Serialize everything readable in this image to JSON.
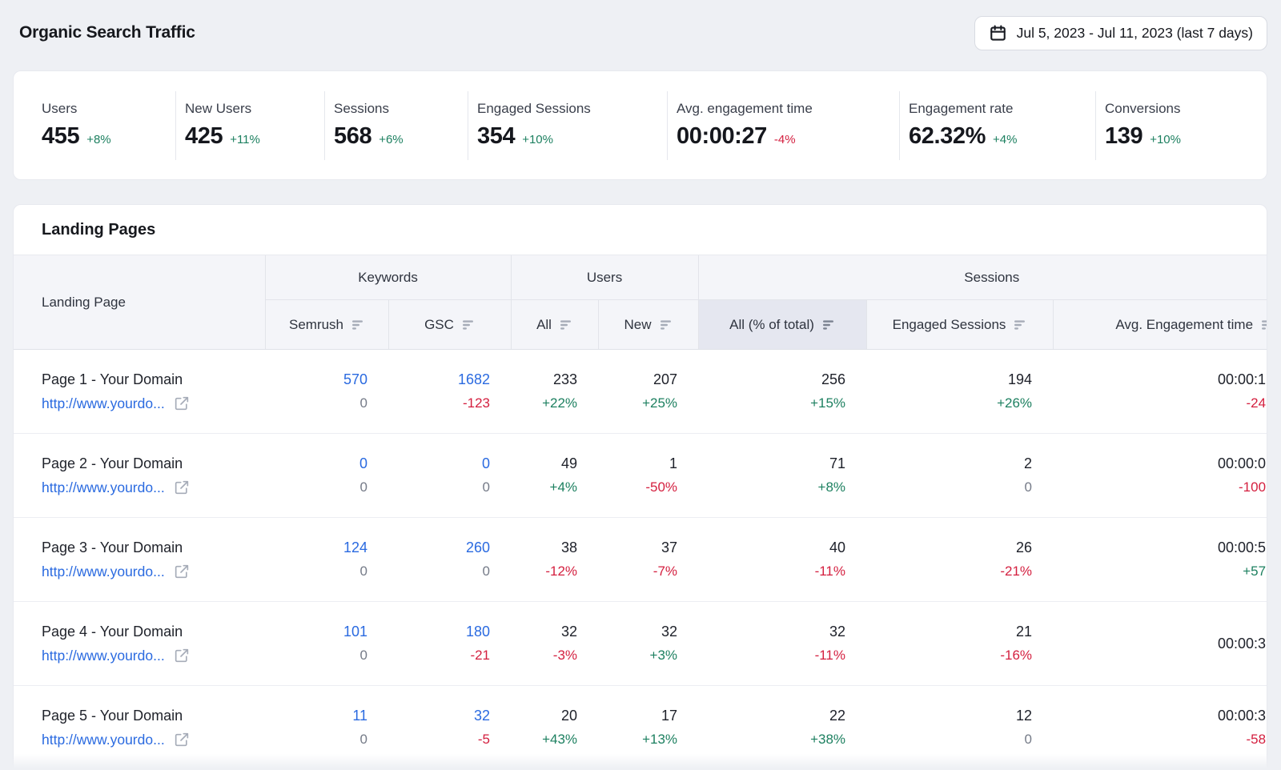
{
  "page": {
    "title": "Organic Search Traffic",
    "date_range": "Jul 5, 2023 - Jul 11, 2023 (last 7 days)"
  },
  "colors": {
    "positive": "#1d8060",
    "negative": "#d41f3f",
    "link": "#2a6ae0",
    "header_bg": "#f4f5f9",
    "header_highlight_bg": "#e5e7f0",
    "page_bg": "#eef0f4"
  },
  "icons": {
    "date_picker": "calendar-icon",
    "column_sort": "sort-icon",
    "row_link": "external-link-icon"
  },
  "kpis": [
    {
      "label": "Users",
      "value": "455",
      "delta": "+8%",
      "trend": "up"
    },
    {
      "label": "New Users",
      "value": "425",
      "delta": "+11%",
      "trend": "up"
    },
    {
      "label": "Sessions",
      "value": "568",
      "delta": "+6%",
      "trend": "up"
    },
    {
      "label": "Engaged Sessions",
      "value": "354",
      "delta": "+10%",
      "trend": "up"
    },
    {
      "label": "Avg. engagement time",
      "value": "00:00:27",
      "delta": "-4%",
      "trend": "down"
    },
    {
      "label": "Engagement rate",
      "value": "62.32%",
      "delta": "+4%",
      "trend": "up"
    },
    {
      "label": "Conversions",
      "value": "139",
      "delta": "+10%",
      "trend": "up"
    }
  ],
  "table": {
    "title": "Landing Pages",
    "landing_page_header": "Landing Page",
    "groups": [
      {
        "label": "Keywords",
        "columns": [
          {
            "label": "Semrush"
          },
          {
            "label": "GSC"
          }
        ]
      },
      {
        "label": "Users",
        "columns": [
          {
            "label": "All"
          },
          {
            "label": "New"
          }
        ]
      },
      {
        "label": "Sessions",
        "columns": [
          {
            "label": "All (% of total)",
            "highlighted": true
          },
          {
            "label": "Engaged Sessions"
          },
          {
            "label": "Avg. Engagement time"
          }
        ]
      }
    ],
    "rows": [
      {
        "name": "Page 1 - Your Domain",
        "url": "http://www.yourdo...",
        "cells": [
          {
            "value": "570",
            "value_style": "link",
            "change": "0",
            "change_style": "muted"
          },
          {
            "value": "1682",
            "value_style": "link",
            "change": "-123",
            "change_style": "down"
          },
          {
            "value": "233",
            "value_style": "dark",
            "change": "+22%",
            "change_style": "up"
          },
          {
            "value": "207",
            "value_style": "dark",
            "change": "+25%",
            "change_style": "up"
          },
          {
            "value": "256",
            "value_style": "dark",
            "change": "+15%",
            "change_style": "up"
          },
          {
            "value": "194",
            "value_style": "dark",
            "change": "+26%",
            "change_style": "up"
          },
          {
            "value": "00:00:1",
            "value_style": "dark",
            "change": "-24",
            "change_style": "down"
          }
        ]
      },
      {
        "name": "Page 2 - Your Domain",
        "url": "http://www.yourdo...",
        "cells": [
          {
            "value": "0",
            "value_style": "link",
            "change": "0",
            "change_style": "muted"
          },
          {
            "value": "0",
            "value_style": "link",
            "change": "0",
            "change_style": "muted"
          },
          {
            "value": "49",
            "value_style": "dark",
            "change": "+4%",
            "change_style": "up"
          },
          {
            "value": "1",
            "value_style": "dark",
            "change": "-50%",
            "change_style": "down"
          },
          {
            "value": "71",
            "value_style": "dark",
            "change": "+8%",
            "change_style": "up"
          },
          {
            "value": "2",
            "value_style": "dark",
            "change": "0",
            "change_style": "muted"
          },
          {
            "value": "00:00:0",
            "value_style": "dark",
            "change": "-100",
            "change_style": "down"
          }
        ]
      },
      {
        "name": "Page 3 - Your Domain",
        "url": "http://www.yourdo...",
        "cells": [
          {
            "value": "124",
            "value_style": "link",
            "change": "0",
            "change_style": "muted"
          },
          {
            "value": "260",
            "value_style": "link",
            "change": "0",
            "change_style": "muted"
          },
          {
            "value": "38",
            "value_style": "dark",
            "change": "-12%",
            "change_style": "down"
          },
          {
            "value": "37",
            "value_style": "dark",
            "change": "-7%",
            "change_style": "down"
          },
          {
            "value": "40",
            "value_style": "dark",
            "change": "-11%",
            "change_style": "down"
          },
          {
            "value": "26",
            "value_style": "dark",
            "change": "-21%",
            "change_style": "down"
          },
          {
            "value": "00:00:5",
            "value_style": "dark",
            "change": "+57",
            "change_style": "up"
          }
        ]
      },
      {
        "name": "Page 4 - Your Domain",
        "url": "http://www.yourdo...",
        "cells": [
          {
            "value": "101",
            "value_style": "link",
            "change": "0",
            "change_style": "muted"
          },
          {
            "value": "180",
            "value_style": "link",
            "change": "-21",
            "change_style": "down"
          },
          {
            "value": "32",
            "value_style": "dark",
            "change": "-3%",
            "change_style": "down"
          },
          {
            "value": "32",
            "value_style": "dark",
            "change": "+3%",
            "change_style": "up"
          },
          {
            "value": "32",
            "value_style": "dark",
            "change": "-11%",
            "change_style": "down"
          },
          {
            "value": "21",
            "value_style": "dark",
            "change": "-16%",
            "change_style": "down"
          },
          {
            "value": "00:00:3",
            "value_style": "dark",
            "change": "",
            "change_style": "muted"
          }
        ]
      },
      {
        "name": "Page 5 - Your Domain",
        "url": "http://www.yourdo...",
        "cells": [
          {
            "value": "11",
            "value_style": "link",
            "change": "0",
            "change_style": "muted"
          },
          {
            "value": "32",
            "value_style": "link",
            "change": "-5",
            "change_style": "down"
          },
          {
            "value": "20",
            "value_style": "dark",
            "change": "+43%",
            "change_style": "up"
          },
          {
            "value": "17",
            "value_style": "dark",
            "change": "+13%",
            "change_style": "up"
          },
          {
            "value": "22",
            "value_style": "dark",
            "change": "+38%",
            "change_style": "up"
          },
          {
            "value": "12",
            "value_style": "dark",
            "change": "0",
            "change_style": "muted"
          },
          {
            "value": "00:00:3",
            "value_style": "dark",
            "change": "-58",
            "change_style": "down"
          }
        ]
      }
    ]
  }
}
